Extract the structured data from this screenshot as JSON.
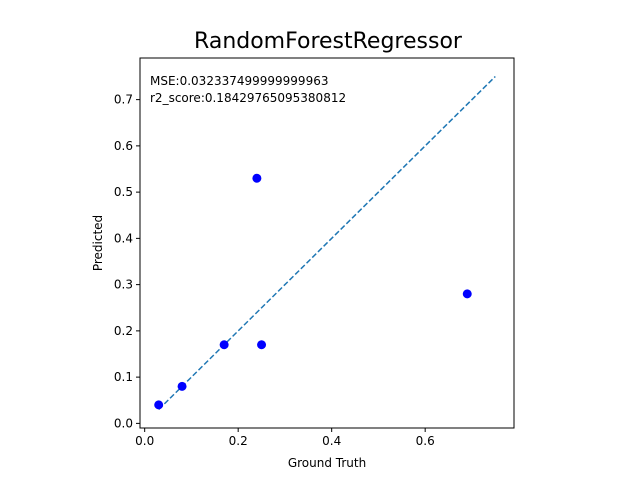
{
  "chart_data": {
    "type": "scatter",
    "title": "RandomForestRegressor",
    "xlabel": "Ground Truth",
    "ylabel": "Predicted",
    "xlim": [
      -0.01,
      0.79
    ],
    "ylim": [
      -0.01,
      0.79
    ],
    "xticks": [
      0.0,
      0.2,
      0.4,
      0.6
    ],
    "xtick_labels": [
      "0.0",
      "0.2",
      "0.4",
      "0.6"
    ],
    "yticks": [
      0.0,
      0.1,
      0.2,
      0.3,
      0.4,
      0.5,
      0.6,
      0.7
    ],
    "ytick_labels": [
      "0.0",
      "0.1",
      "0.2",
      "0.3",
      "0.4",
      "0.5",
      "0.6",
      "0.7"
    ],
    "grid": false,
    "points": [
      {
        "x": 0.03,
        "y": 0.04
      },
      {
        "x": 0.08,
        "y": 0.08
      },
      {
        "x": 0.17,
        "y": 0.17
      },
      {
        "x": 0.24,
        "y": 0.53
      },
      {
        "x": 0.25,
        "y": 0.17
      },
      {
        "x": 0.69,
        "y": 0.28
      }
    ],
    "reference_line": {
      "style": "dashed",
      "x": [
        0.03,
        0.75
      ],
      "y": [
        0.03,
        0.75
      ]
    },
    "annotations": [
      "MSE:0.032337499999999963",
      "r2_score:0.18429765095380812"
    ],
    "colors": {
      "points": "#0000ff",
      "reference_line": "#1f77b4",
      "axes": "#000000"
    }
  }
}
